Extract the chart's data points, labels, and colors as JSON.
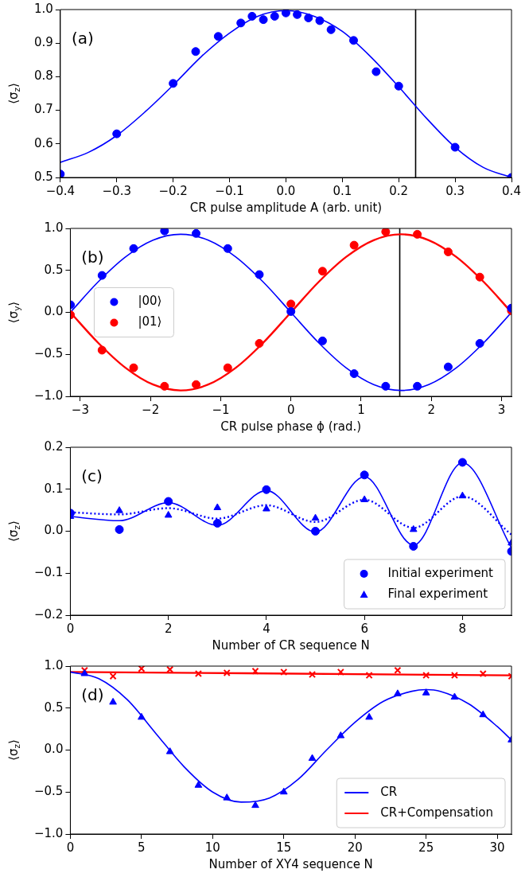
{
  "chart_data": [
    {
      "type": "scatter",
      "ylabel": "⟨σ$_{z}$⟩",
      "xlabel": "CR pulse amplitude A (arb. unit)",
      "annotations": [
        "(a)"
      ],
      "xlim": [
        -0.4,
        0.4
      ],
      "ylim": [
        0.5,
        1.0
      ],
      "xticks": [
        {
          "value": -0.4,
          "label": "−0.4"
        },
        {
          "value": -0.3,
          "label": "−0.3"
        },
        {
          "value": -0.2,
          "label": "−0.2"
        },
        {
          "value": -0.1,
          "label": "−0.1"
        },
        {
          "value": 0,
          "label": "0.0"
        },
        {
          "value": 0.1,
          "label": "0.1"
        },
        {
          "value": 0.2,
          "label": "0.2"
        },
        {
          "value": 0.3,
          "label": "0.3"
        },
        {
          "value": 0.4,
          "label": "0.4"
        }
      ],
      "yticks": [
        {
          "value": 0.5,
          "label": "0.5"
        },
        {
          "value": 0.6,
          "label": "0.6"
        },
        {
          "value": 0.7,
          "label": "0.7"
        },
        {
          "value": 0.8,
          "label": "0.8"
        },
        {
          "value": 0.9,
          "label": "0.9"
        },
        {
          "value": 1.0,
          "label": "1.0"
        }
      ],
      "ref_lines": [
        {
          "axis": "x",
          "value": 0.23,
          "color": "#000000"
        }
      ],
      "series": [
        {
          "type": "scatter",
          "marker": "circle",
          "color": "#0000ff",
          "x": [
            -0.4,
            -0.3,
            -0.2,
            -0.16,
            -0.12,
            -0.08,
            -0.06,
            -0.04,
            -0.02,
            0,
            0.02,
            0.04,
            0.06,
            0.08,
            0.12,
            0.16,
            0.2,
            0.3,
            0.4
          ],
          "values": [
            0.51,
            0.63,
            0.78,
            0.875,
            0.92,
            0.96,
            0.98,
            0.97,
            0.98,
            0.99,
            0.985,
            0.975,
            0.967,
            0.94,
            0.908,
            0.815,
            0.772,
            0.59,
            0.5
          ]
        },
        {
          "type": "line",
          "line_style": "solid",
          "color": "#0000ff",
          "x": [
            -0.4,
            -0.35,
            -0.3,
            -0.25,
            -0.2,
            -0.15,
            -0.1,
            -0.05,
            0,
            0.05,
            0.1,
            0.15,
            0.2,
            0.25,
            0.3,
            0.35,
            0.4
          ],
          "values": [
            0.545,
            0.575,
            0.625,
            0.695,
            0.775,
            0.86,
            0.93,
            0.98,
            0.997,
            0.98,
            0.935,
            0.86,
            0.77,
            0.675,
            0.59,
            0.53,
            0.5
          ]
        }
      ]
    },
    {
      "type": "scatter",
      "ylabel": "⟨σ$_{y}$⟩",
      "xlabel": "CR pulse phase ϕ (rad.)",
      "annotations": [
        "(b)"
      ],
      "xlim": [
        -3.1416,
        3.1416
      ],
      "ylim": [
        -1.0,
        1.0
      ],
      "legend": "center left",
      "xticks": [
        {
          "value": -3,
          "label": "−3"
        },
        {
          "value": -2,
          "label": "−2"
        },
        {
          "value": -1,
          "label": "−1"
        },
        0,
        1,
        2,
        3
      ],
      "yticks": [
        {
          "value": -1,
          "label": "−1.0"
        },
        {
          "value": -0.5,
          "label": "−0.5"
        },
        {
          "value": 0,
          "label": "0.0"
        },
        {
          "value": 0.5,
          "label": "0.5"
        },
        {
          "value": 1,
          "label": "1.0"
        }
      ],
      "ref_lines": [
        {
          "axis": "x",
          "value": 1.55,
          "color": "#000000"
        }
      ],
      "series": [
        {
          "type": "scatter",
          "name": "|00⟩",
          "marker": "circle",
          "color": "#0000ff",
          "x": [
            -3.14,
            -2.69,
            -2.24,
            -1.8,
            -1.35,
            -0.9,
            -0.45,
            0,
            0.45,
            0.9,
            1.35,
            1.8,
            2.24,
            2.69,
            3.14
          ],
          "values": [
            0.09,
            0.44,
            0.76,
            0.97,
            0.94,
            0.76,
            0.45,
            0.01,
            -0.34,
            -0.73,
            -0.88,
            -0.88,
            -0.65,
            -0.37,
            0.05
          ]
        },
        {
          "type": "scatter",
          "name": "|01⟩",
          "marker": "circle",
          "color": "#ff0000",
          "x": [
            -3.14,
            -2.69,
            -2.24,
            -1.8,
            -1.35,
            -0.9,
            -0.45,
            0,
            0.45,
            0.9,
            1.35,
            1.8,
            2.24,
            2.69,
            3.14
          ],
          "values": [
            -0.03,
            -0.45,
            -0.66,
            -0.88,
            -0.86,
            -0.66,
            -0.37,
            0.1,
            0.49,
            0.8,
            0.96,
            0.93,
            0.72,
            0.42,
            0.02
          ]
        },
        {
          "type": "line",
          "line_style": "solid",
          "color": "#0000ff",
          "x": [
            -3.1416,
            -2.7489,
            -2.3562,
            -1.9635,
            -1.5708,
            -1.1781,
            -0.7854,
            -0.3927,
            0,
            0.3927,
            0.7854,
            1.1781,
            1.5708,
            1.9635,
            2.3562,
            2.7489,
            3.1416
          ],
          "values": [
            0,
            0.36,
            0.66,
            0.86,
            0.93,
            0.86,
            0.66,
            0.36,
            0,
            -0.36,
            -0.66,
            -0.86,
            -0.93,
            -0.86,
            -0.66,
            -0.36,
            0
          ]
        },
        {
          "type": "line",
          "line_style": "solid",
          "color": "#ff0000",
          "x": [
            -3.1416,
            -2.7489,
            -2.3562,
            -1.9635,
            -1.5708,
            -1.1781,
            -0.7854,
            -0.3927,
            0,
            0.3927,
            0.7854,
            1.1781,
            1.5708,
            1.9635,
            2.3562,
            2.7489,
            3.1416
          ],
          "values": [
            0,
            -0.36,
            -0.66,
            -0.86,
            -0.93,
            -0.86,
            -0.66,
            -0.36,
            0,
            0.36,
            0.66,
            0.86,
            0.93,
            0.86,
            0.66,
            0.36,
            0
          ]
        }
      ]
    },
    {
      "type": "scatter",
      "ylabel": "⟨σ$_{z}$⟩",
      "xlabel": "Number of CR sequence N",
      "annotations": [
        "(c)"
      ],
      "xlim": [
        0,
        9
      ],
      "ylim": [
        -0.2,
        0.2
      ],
      "legend": "bottom right",
      "xticks": [
        0,
        2,
        4,
        6,
        8
      ],
      "yticks": [
        {
          "value": -0.2,
          "label": "−0.2"
        },
        {
          "value": -0.1,
          "label": "−0.1"
        },
        {
          "value": 0,
          "label": "0.0"
        },
        {
          "value": 0.1,
          "label": "0.1"
        },
        {
          "value": 0.2,
          "label": "0.2"
        }
      ],
      "series": [
        {
          "type": "scatter",
          "name": "Initial experiment",
          "marker": "circle",
          "color": "#0000ff",
          "x": [
            0,
            1,
            2,
            3,
            4,
            5,
            6,
            7,
            8,
            9
          ],
          "values": [
            0.043,
            0.004,
            0.071,
            0.019,
            0.099,
            0.0,
            0.134,
            -0.036,
            0.164,
            -0.048
          ]
        },
        {
          "type": "scatter",
          "name": "Final experiment",
          "marker": "triangle",
          "color": "#0000ff",
          "x": [
            0,
            1,
            2,
            3,
            4,
            5,
            6,
            7,
            8,
            9
          ],
          "values": [
            0.035,
            0.049,
            0.038,
            0.056,
            0.053,
            0.031,
            0.075,
            0.004,
            0.084,
            -0.028
          ]
        },
        {
          "type": "line",
          "line_style": "solid",
          "color": "#0000ff",
          "x": [
            0,
            1,
            2,
            3,
            4,
            5,
            6,
            7,
            8,
            9
          ],
          "values": [
            0.035,
            0.025,
            0.068,
            0.014,
            0.097,
            -0.002,
            0.13,
            -0.033,
            0.163,
            -0.04
          ]
        },
        {
          "type": "line",
          "line_style": "dotted",
          "color": "#0000ff",
          "x": [
            0,
            1,
            2,
            3,
            4,
            5,
            6,
            7,
            8,
            9
          ],
          "values": [
            0.045,
            0.04,
            0.055,
            0.03,
            0.062,
            0.022,
            0.075,
            0.008,
            0.083,
            -0.008
          ]
        }
      ]
    },
    {
      "type": "scatter",
      "ylabel": "⟨σ$_{z}$⟩",
      "xlabel": "Number of XY4 sequence N",
      "annotations": [
        "(d)"
      ],
      "xlim": [
        0,
        31
      ],
      "ylim": [
        -1.0,
        1.0
      ],
      "legend": "bottom right",
      "xticks": [
        0,
        5,
        10,
        15,
        20,
        25,
        30
      ],
      "yticks": [
        {
          "value": -1,
          "label": "−1.0"
        },
        {
          "value": -0.5,
          "label": "−0.5"
        },
        {
          "value": 0,
          "label": "0.0"
        },
        {
          "value": 0.5,
          "label": "0.5"
        },
        {
          "value": 1,
          "label": "1.0"
        }
      ],
      "series": [
        {
          "type": "line",
          "name": "CR",
          "line_style": "solid",
          "color": "#0000ff",
          "x": [
            0,
            2,
            4,
            6,
            8,
            10,
            12,
            14,
            16,
            18,
            20,
            22,
            24,
            25,
            26,
            28,
            30,
            31
          ],
          "values": [
            0.93,
            0.85,
            0.6,
            0.2,
            -0.2,
            -0.5,
            -0.62,
            -0.57,
            -0.35,
            0.0,
            0.33,
            0.58,
            0.7,
            0.72,
            0.7,
            0.55,
            0.28,
            0.12
          ]
        },
        {
          "type": "line",
          "name": "CR+Compensation",
          "line_style": "solid",
          "color": "#ff0000",
          "x": [
            0,
            31
          ],
          "values": [
            0.93,
            0.89
          ]
        },
        {
          "type": "scatter",
          "marker": "triangle",
          "color": "#0000ff",
          "x": [
            1,
            3,
            5,
            7,
            9,
            11,
            13,
            15,
            17,
            19,
            21,
            23,
            25,
            27,
            29,
            31
          ],
          "values": [
            0.91,
            0.57,
            0.39,
            -0.02,
            -0.42,
            -0.57,
            -0.66,
            -0.5,
            -0.1,
            0.17,
            0.39,
            0.67,
            0.68,
            0.63,
            0.42,
            0.12
          ]
        },
        {
          "type": "scatter",
          "marker": "cross",
          "color": "#ff0000",
          "x": [
            1,
            3,
            5,
            7,
            9,
            11,
            13,
            15,
            17,
            19,
            21,
            23,
            25,
            27,
            29,
            31
          ],
          "values": [
            0.95,
            0.88,
            0.97,
            0.96,
            0.91,
            0.92,
            0.94,
            0.93,
            0.9,
            0.93,
            0.89,
            0.95,
            0.89,
            0.89,
            0.91,
            0.88
          ]
        }
      ]
    }
  ]
}
